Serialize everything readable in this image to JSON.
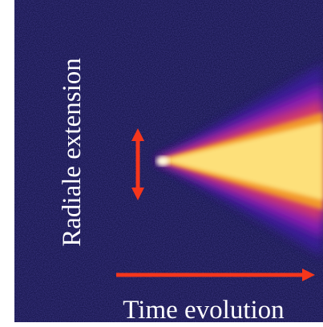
{
  "labels": {
    "vertical": "Radiale extension",
    "horizontal": "Time evolution"
  }
}
